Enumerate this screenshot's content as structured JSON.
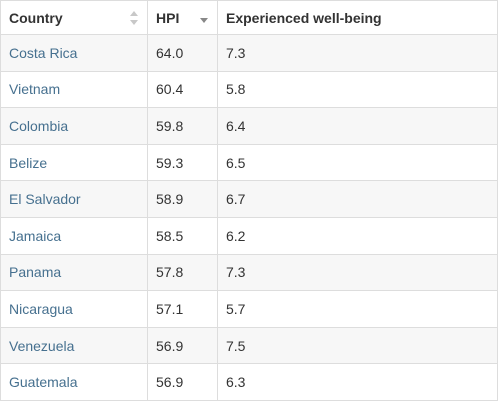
{
  "table": {
    "headers": [
      "Country",
      "HPI",
      "Experienced well-being"
    ],
    "rows": [
      [
        "Costa Rica",
        "64.0",
        "7.3"
      ],
      [
        "Vietnam",
        "60.4",
        "5.8"
      ],
      [
        "Colombia",
        "59.8",
        "6.4"
      ],
      [
        "Belize",
        "59.3",
        "6.5"
      ],
      [
        "El Salvador",
        "58.9",
        "6.7"
      ],
      [
        "Jamaica",
        "58.5",
        "6.2"
      ],
      [
        "Panama",
        "57.8",
        "7.3"
      ],
      [
        "Nicaragua",
        "57.1",
        "5.7"
      ],
      [
        "Venezuela",
        "56.9",
        "7.5"
      ],
      [
        "Guatemala",
        "56.9",
        "6.3"
      ]
    ]
  }
}
